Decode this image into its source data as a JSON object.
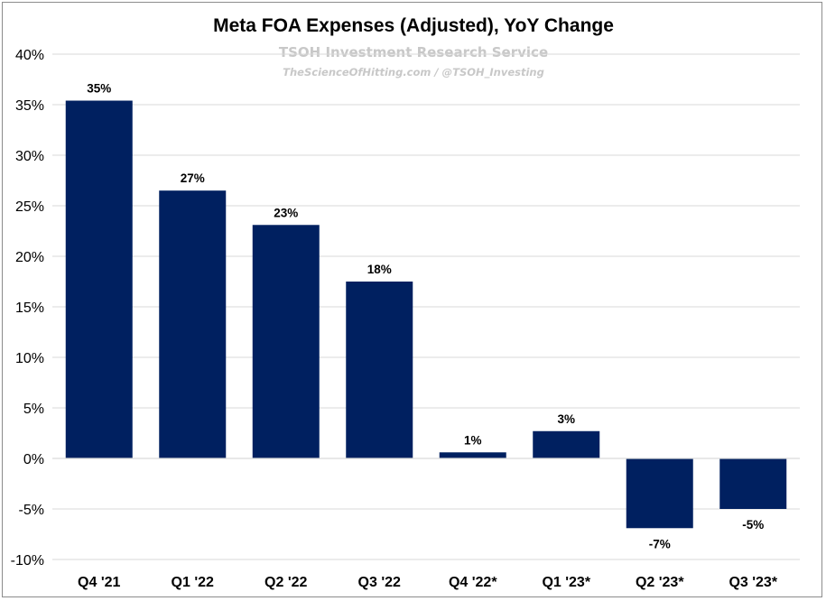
{
  "chart_data": {
    "type": "bar",
    "title": "Meta FOA Expenses (Adjusted), YoY Change",
    "subtitle": "TSOH Investment Research Service",
    "source": "TheScienceOfHitting.com / @TSOH_Investing",
    "categories": [
      "Q4 '21",
      "Q1 '22",
      "Q2 '22",
      "Q3 '22",
      "Q4 '22*",
      "Q1 '23*",
      "Q2 '23*",
      "Q3 '23*"
    ],
    "values": [
      35.4,
      26.5,
      23.1,
      17.5,
      0.6,
      2.7,
      -6.9,
      -5.0
    ],
    "data_labels": [
      "35%",
      "27%",
      "23%",
      "18%",
      "1%",
      "3%",
      "-7%",
      "-5%"
    ],
    "ylim": [
      -10,
      40
    ],
    "yticks": [
      40,
      35,
      30,
      25,
      20,
      15,
      10,
      5,
      0,
      -5,
      -10
    ],
    "ytick_labels": [
      "40%",
      "35%",
      "30%",
      "25%",
      "20%",
      "15%",
      "10%",
      "5%",
      "0%",
      "-5%",
      "-10%"
    ],
    "xlabel": "",
    "ylabel": "",
    "grid": true,
    "legend": "none",
    "colors": {
      "bar": "#002060",
      "grid": "#d9d9d9",
      "text": "#000000",
      "watermark": "#c8c8c8"
    }
  }
}
